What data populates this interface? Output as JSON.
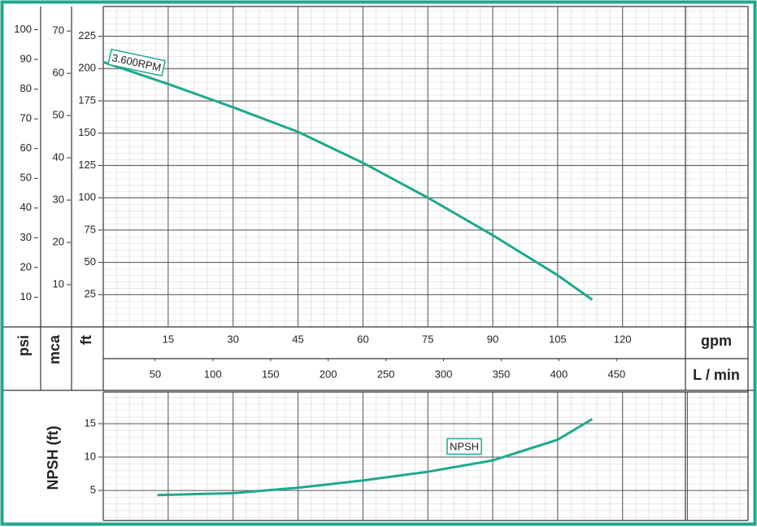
{
  "chart_data": [
    {
      "type": "line",
      "x": [
        0,
        15,
        30,
        45,
        60,
        75,
        90,
        105,
        113
      ],
      "series": [
        {
          "name": "3.600RPM",
          "color": "#1ea88e",
          "values": [
            205,
            188,
            170,
            151,
            127,
            100,
            71,
            40,
            21
          ]
        }
      ],
      "xlim": [
        0,
        149
      ],
      "xticks": [
        15,
        30,
        45,
        60,
        75,
        90,
        105,
        120
      ],
      "x_label": "gpm",
      "x2lim": [
        5,
        564
      ],
      "x2ticks": [
        50,
        100,
        150,
        200,
        250,
        300,
        350,
        400,
        450
      ],
      "x2_label": "L / min",
      "ylim": [
        0,
        248
      ],
      "yticks": [
        25,
        50,
        75,
        100,
        125,
        150,
        175,
        200,
        225
      ],
      "y_label": "ft",
      "y2lim": [
        0,
        107.8
      ],
      "y2ticks": [
        10,
        20,
        30,
        40,
        50,
        60,
        70,
        80,
        90,
        100
      ],
      "y2_label": "psi",
      "y3lim": [
        0,
        75.8
      ],
      "y3ticks": [
        10,
        20,
        30,
        40,
        50,
        60,
        70
      ],
      "y3_label": "mca",
      "grid": true
    },
    {
      "type": "line",
      "x": [
        12.5,
        30,
        45,
        60,
        75,
        90,
        105,
        113
      ],
      "series": [
        {
          "name": "NPSH",
          "color": "#1ea88e",
          "values": [
            4.3,
            4.6,
            5.4,
            6.5,
            7.8,
            9.5,
            12.6,
            15.7
          ]
        }
      ],
      "xlim": [
        0,
        149
      ],
      "xticks": [
        15,
        30,
        45,
        60,
        75,
        90,
        105,
        120,
        135
      ],
      "ylim": [
        0.5,
        19.75
      ],
      "yticks": [
        5,
        10,
        15
      ],
      "y_label": "NPSH (ft)",
      "grid": true
    }
  ]
}
